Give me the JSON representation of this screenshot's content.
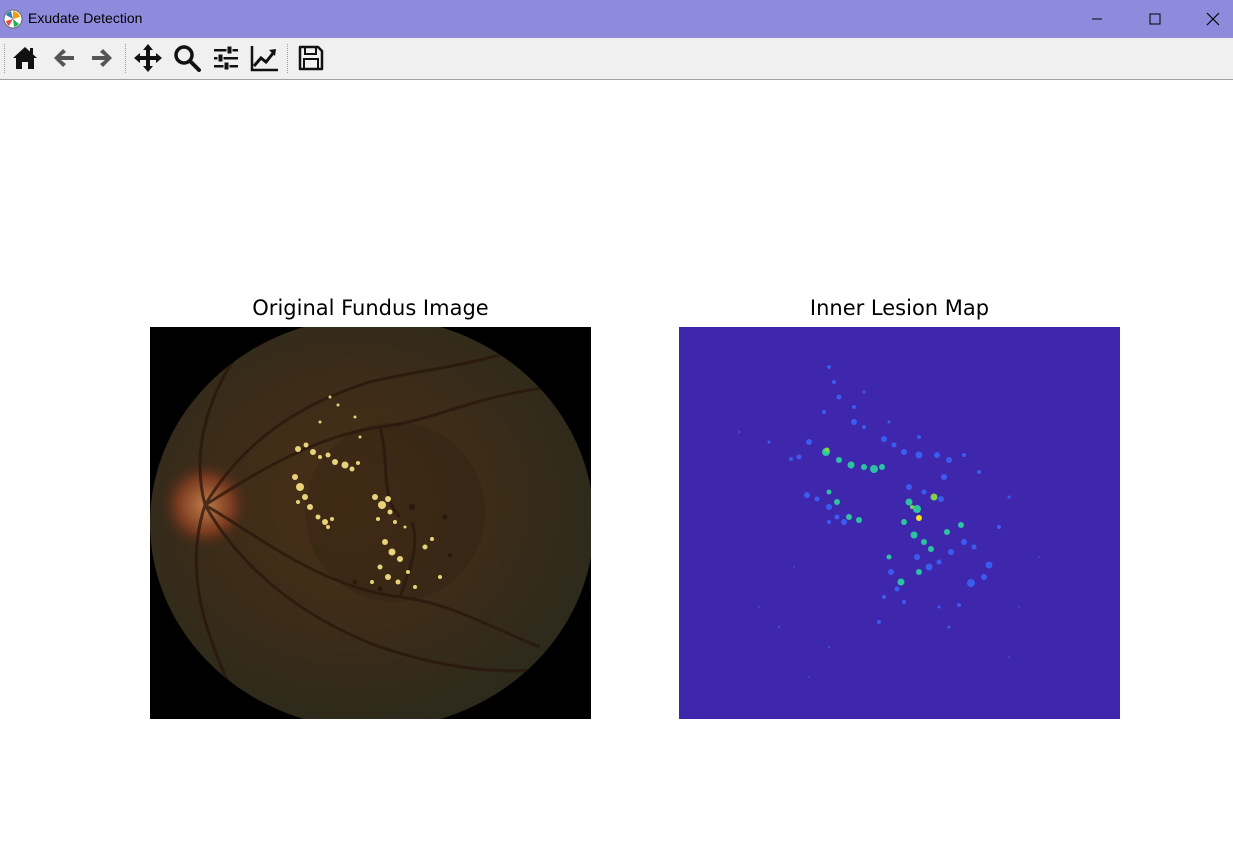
{
  "window": {
    "title": "Exudate Detection",
    "icon": "matplotlib-logo-icon",
    "controls": [
      "minimize-icon",
      "maximize-icon",
      "close-icon"
    ]
  },
  "toolbar": {
    "buttons": [
      {
        "name": "home",
        "icon": "home-icon"
      },
      {
        "name": "back",
        "icon": "arrow-left-icon"
      },
      {
        "name": "forward",
        "icon": "arrow-right-icon"
      },
      {
        "name": "pan",
        "icon": "move-icon"
      },
      {
        "name": "zoom",
        "icon": "magnifier-icon"
      },
      {
        "name": "subplots",
        "icon": "sliders-icon"
      },
      {
        "name": "customize",
        "icon": "line-chart-icon"
      },
      {
        "name": "save",
        "icon": "floppy-disk-icon"
      }
    ]
  },
  "figure": {
    "left_title": "Original Fundus Image",
    "right_title": "Inner Lesion Map",
    "colors": {
      "fundus_background": "#000000",
      "fundus_tissue": "#3a2a1a",
      "exudate": "#e8d27a",
      "lesion_background": "#3f27ad",
      "lesion_low": "#3b5cf0",
      "lesion_mid": "#2bc3a0",
      "lesion_high": "#f5e026"
    }
  }
}
